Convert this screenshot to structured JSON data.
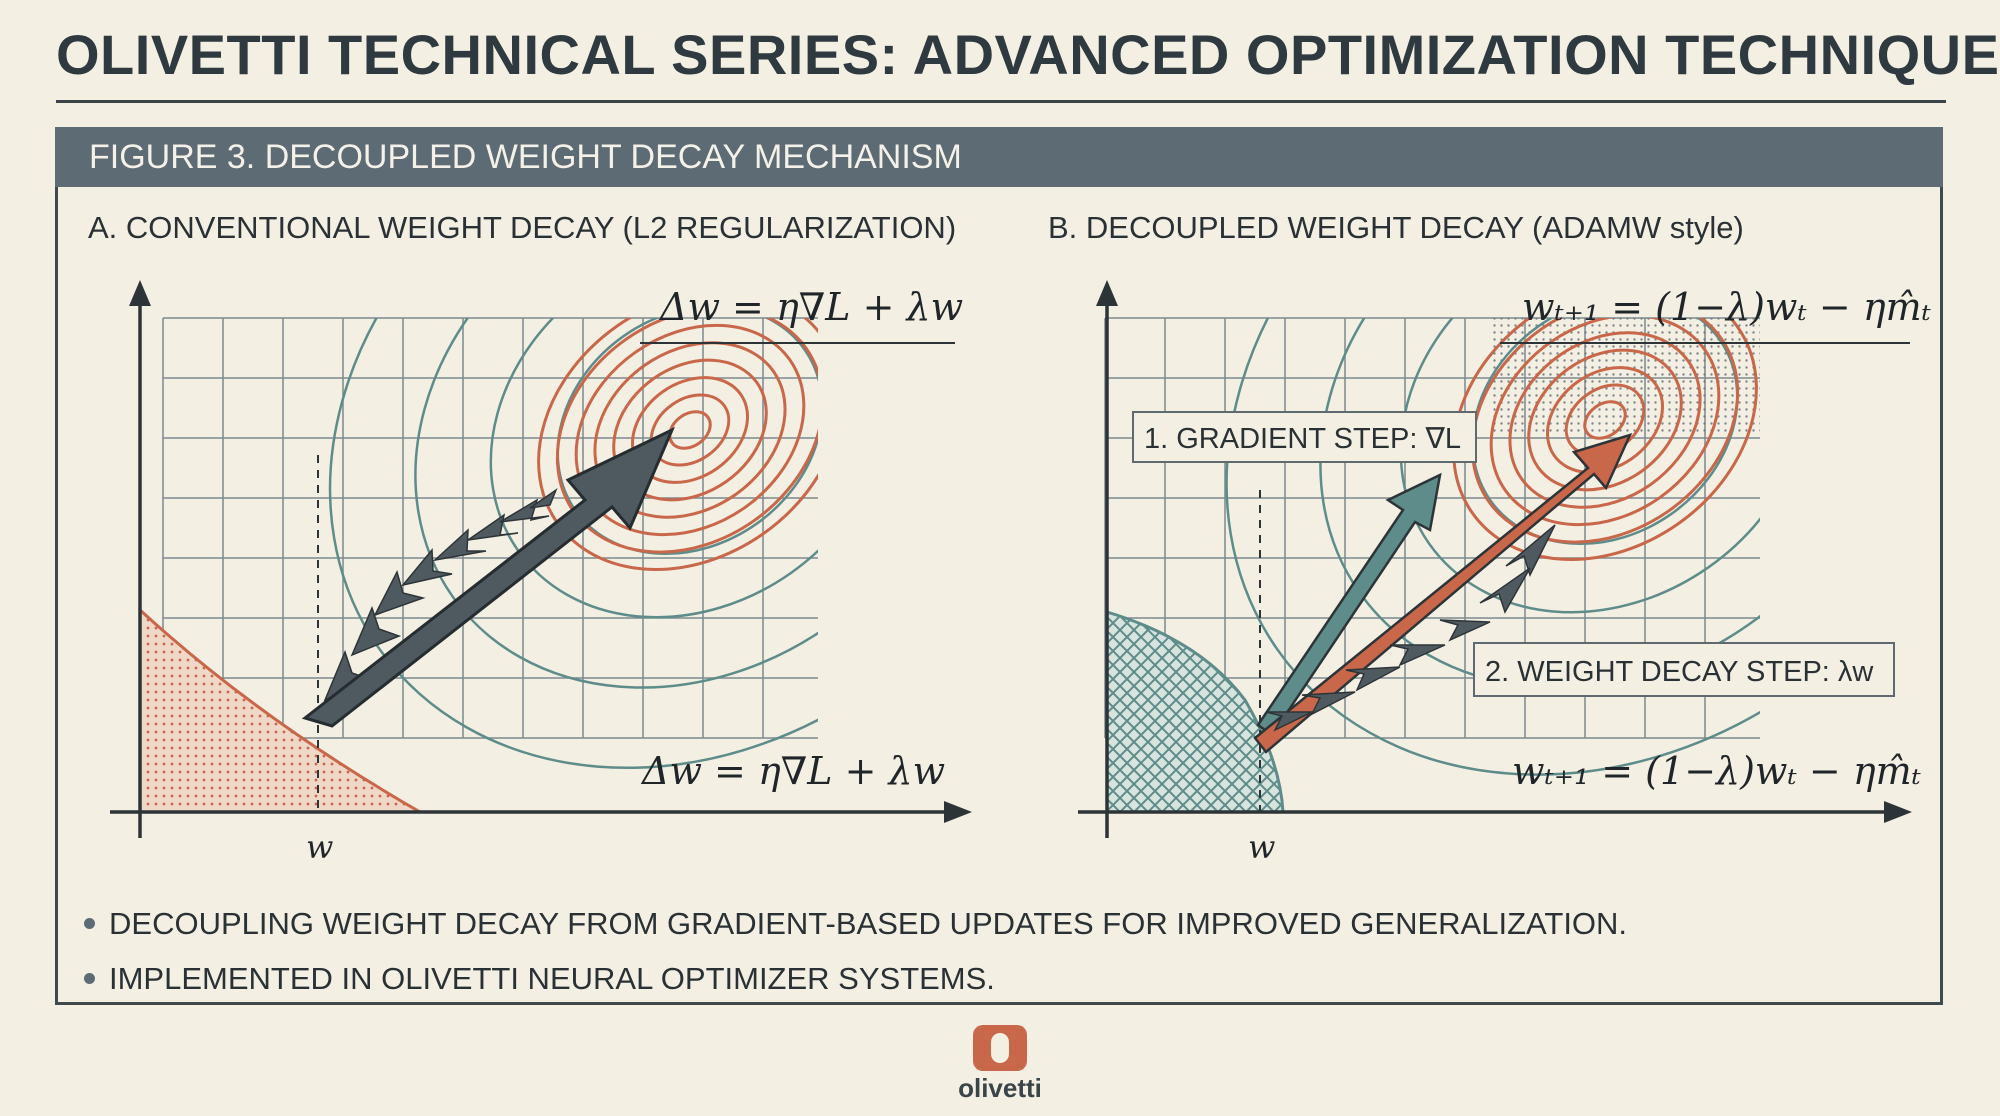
{
  "header": {
    "title": "OLIVETTI TECHNICAL SERIES: ADVANCED OPTIMIZATION TECHNIQUES"
  },
  "figure": {
    "caption": "FIGURE 3. DECOUPLED WEIGHT DECAY MECHANISM"
  },
  "panel_a": {
    "title": "A. CONVENTIONAL WEIGHT DECAY (L2 REGULARIZATION)",
    "formula_top": "Δw = η∇L + λw",
    "formula_bottom": "Δw = η∇L + λw",
    "axis_label": "w"
  },
  "panel_b": {
    "title": "B. DECOUPLED WEIGHT DECAY (ADAMW style)",
    "formula_top": "wₜ₊₁ = (1−λ)wₜ − ηm̂ₜ",
    "formula_bottom": "wₜ₊₁ = (1−λ)wₜ − ηm̂ₜ",
    "axis_label": "w",
    "gradient_label": "1. GRADIENT STEP: ∇L",
    "decay_label": "2. WEIGHT DECAY STEP: λw"
  },
  "bullets": [
    "DECOUPLING WEIGHT DECAY FROM GRADIENT-BASED UPDATES FOR IMPROVED GENERALIZATION.",
    "IMPLEMENTED IN OLIVETTI NEURAL OPTIMIZER SYSTEMS."
  ],
  "logo": {
    "wordmark": "olivetti"
  },
  "colors": {
    "banner": "#5d6b74",
    "contour_teal": "#5e8c8a",
    "contour_orange": "#c8674a",
    "arrow_gray": "#4f5a60"
  }
}
